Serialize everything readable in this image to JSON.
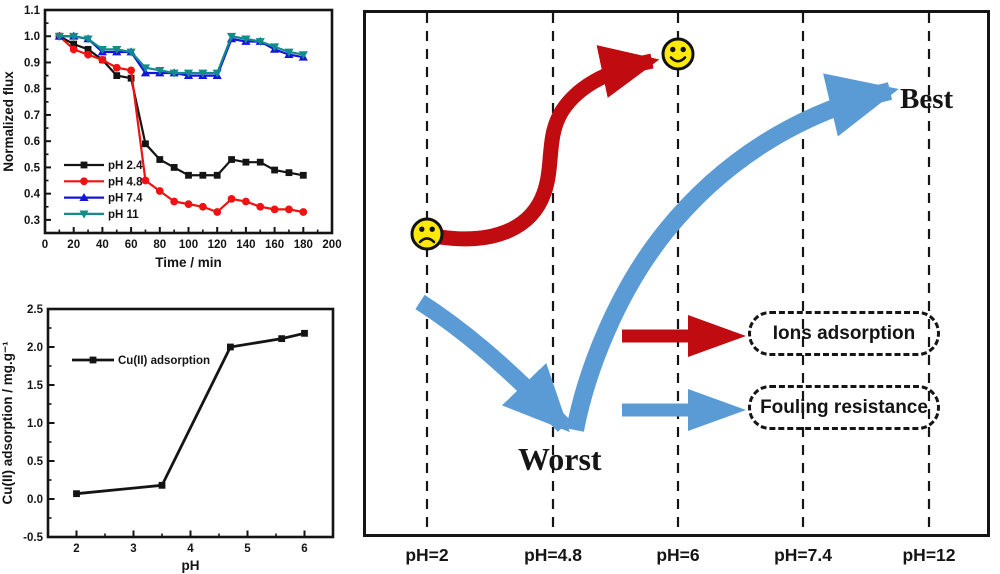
{
  "chart_data": [
    {
      "type": "line",
      "title": "",
      "xlabel": "Time / min",
      "ylabel": "Normalized flux",
      "xlim": [
        0,
        200
      ],
      "ylim": [
        0.25,
        1.1
      ],
      "xticks": [
        0,
        20,
        40,
        60,
        80,
        100,
        120,
        140,
        160,
        180,
        200
      ],
      "yticks": [
        0.3,
        0.4,
        0.5,
        0.6,
        0.7,
        0.8,
        0.9,
        1.0,
        1.1
      ],
      "grid": false,
      "legend_position": "lower-left",
      "x": [
        10,
        20,
        30,
        40,
        50,
        60,
        70,
        80,
        90,
        100,
        110,
        120,
        130,
        140,
        150,
        160,
        170,
        180
      ],
      "series": [
        {
          "name": "pH 2.4",
          "marker": "square",
          "color": "#141414",
          "values": [
            1.0,
            0.97,
            0.95,
            0.91,
            0.85,
            0.84,
            0.59,
            0.53,
            0.5,
            0.47,
            0.47,
            0.47,
            0.53,
            0.52,
            0.52,
            0.49,
            0.48,
            0.47
          ]
        },
        {
          "name": "pH 4.8",
          "marker": "circle",
          "color": "#ee1212",
          "values": [
            1.0,
            0.95,
            0.93,
            0.91,
            0.88,
            0.87,
            0.45,
            0.41,
            0.37,
            0.36,
            0.35,
            0.33,
            0.38,
            0.37,
            0.35,
            0.34,
            0.34,
            0.33
          ]
        },
        {
          "name": "pH 7.4",
          "marker": "triangle-up",
          "color": "#1414dd",
          "values": [
            1.0,
            1.0,
            0.99,
            0.94,
            0.94,
            0.94,
            0.86,
            0.86,
            0.86,
            0.85,
            0.85,
            0.85,
            0.99,
            0.98,
            0.98,
            0.95,
            0.93,
            0.92
          ]
        },
        {
          "name": "pH 11",
          "marker": "triangle-down",
          "color": "#128b8b",
          "values": [
            1.0,
            1.0,
            0.99,
            0.95,
            0.95,
            0.94,
            0.88,
            0.87,
            0.86,
            0.86,
            0.86,
            0.86,
            1.0,
            0.99,
            0.98,
            0.96,
            0.94,
            0.93
          ]
        }
      ]
    },
    {
      "type": "line",
      "title": "",
      "xlabel": "pH",
      "ylabel": "Cu(II) adsorption / mg.g⁻¹",
      "xlim": [
        1.5,
        6.5
      ],
      "ylim": [
        -0.5,
        2.5
      ],
      "xticks": [
        2,
        3,
        4,
        5,
        6
      ],
      "yticks": [
        -0.5,
        0.0,
        0.5,
        1.0,
        1.5,
        2.0,
        2.5
      ],
      "grid": false,
      "legend_position": "upper-left",
      "series": [
        {
          "name": "Cu(II) adsorption",
          "marker": "square",
          "color": "#141414",
          "x": [
            2,
            3.5,
            4.7,
            5.6,
            6
          ],
          "values": [
            0.07,
            0.18,
            2.0,
            2.11,
            2.18
          ]
        }
      ]
    }
  ],
  "diagram": {
    "ph_labels": [
      "pH=2",
      "pH=4.8",
      "pH=6",
      "pH=7.4",
      "pH=12"
    ],
    "best_label": "Best",
    "worst_label": "Worst",
    "legend": [
      {
        "label": "Ions adsorption",
        "arrow_color": "#c00b10"
      },
      {
        "label": "Fouling resistance",
        "arrow_color": "#5b9bd5"
      }
    ],
    "sad_face_column": "pH=2",
    "happy_face_column": "pH=6",
    "colors": {
      "red_arrow": "#c00b10",
      "blue_arrow": "#5b9bd5",
      "smiley": "#ffe90a"
    }
  }
}
